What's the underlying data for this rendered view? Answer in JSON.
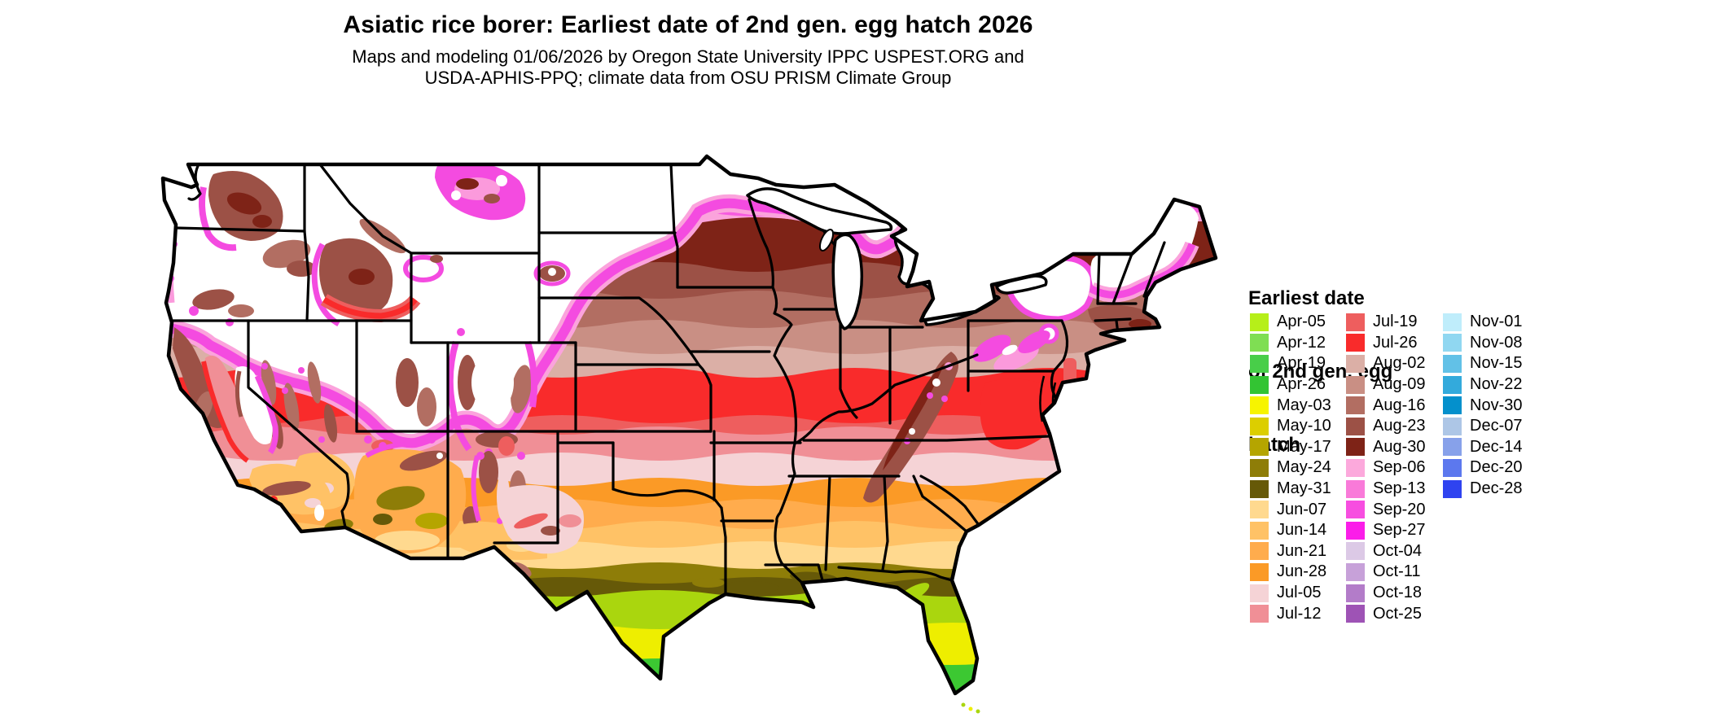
{
  "header": {
    "title": "Asiatic rice borer: Earliest date of 2nd gen. egg hatch 2026",
    "subtitle_line1": "Maps and modeling 01/06/2026 by Oregon State University IPPC USPEST.ORG and",
    "subtitle_line2": "USDA-APHIS-PPQ; climate data from OSU PRISM Climate Group"
  },
  "legend": {
    "title_lines": [
      "Earliest date",
      "of 2nd gen. egg",
      "hatch"
    ],
    "columns": [
      {
        "entries": [
          {
            "label": "Apr-05",
            "color": "#B6EF19"
          },
          {
            "label": "Apr-12",
            "color": "#7FDE53"
          },
          {
            "label": "Apr-19",
            "color": "#48CE49"
          },
          {
            "label": "Apr-26",
            "color": "#33C433"
          },
          {
            "label": "May-03",
            "color": "#F7F400"
          },
          {
            "label": "May-10",
            "color": "#DCCE00"
          },
          {
            "label": "May-17",
            "color": "#B5A500"
          },
          {
            "label": "May-24",
            "color": "#8E7D08"
          },
          {
            "label": "May-31",
            "color": "#665908"
          },
          {
            "label": "Jun-07",
            "color": "#FFD98F"
          },
          {
            "label": "Jun-14",
            "color": "#FFC266"
          },
          {
            "label": "Jun-21",
            "color": "#FFAC4D"
          },
          {
            "label": "Jun-28",
            "color": "#FB9A26"
          },
          {
            "label": "Jul-05",
            "color": "#F5D3D6"
          },
          {
            "label": "Jul-12",
            "color": "#F08F96"
          }
        ]
      },
      {
        "entries": [
          {
            "label": "Jul-19",
            "color": "#EE5E5E"
          },
          {
            "label": "Jul-26",
            "color": "#F92B2B"
          },
          {
            "label": "Aug-02",
            "color": "#DBAFA6"
          },
          {
            "label": "Aug-09",
            "color": "#C98F84"
          },
          {
            "label": "Aug-16",
            "color": "#B26E62"
          },
          {
            "label": "Aug-23",
            "color": "#9C5146"
          },
          {
            "label": "Aug-30",
            "color": "#7E2317"
          },
          {
            "label": "Sep-06",
            "color": "#FCA9DC"
          },
          {
            "label": "Sep-13",
            "color": "#F97AD9"
          },
          {
            "label": "Sep-20",
            "color": "#F74EE0"
          },
          {
            "label": "Sep-27",
            "color": "#FB1DE9"
          },
          {
            "label": "Oct-04",
            "color": "#DCC9E6"
          },
          {
            "label": "Oct-11",
            "color": "#C7A1D9"
          },
          {
            "label": "Oct-18",
            "color": "#B37CC9"
          },
          {
            "label": "Oct-25",
            "color": "#9E53B5"
          }
        ]
      },
      {
        "entries": [
          {
            "label": "Nov-01",
            "color": "#BFEDFB"
          },
          {
            "label": "Nov-08",
            "color": "#90D7F1"
          },
          {
            "label": "Nov-15",
            "color": "#62C1E7"
          },
          {
            "label": "Nov-22",
            "color": "#33AADC"
          },
          {
            "label": "Nov-30",
            "color": "#0490CC"
          },
          {
            "label": "Dec-07",
            "color": "#ADC6E6"
          },
          {
            "label": "Dec-14",
            "color": "#87A1EA"
          },
          {
            "label": "Dec-20",
            "color": "#5C78EE"
          },
          {
            "label": "Dec-28",
            "color": "#2F43F0"
          }
        ]
      }
    ]
  }
}
